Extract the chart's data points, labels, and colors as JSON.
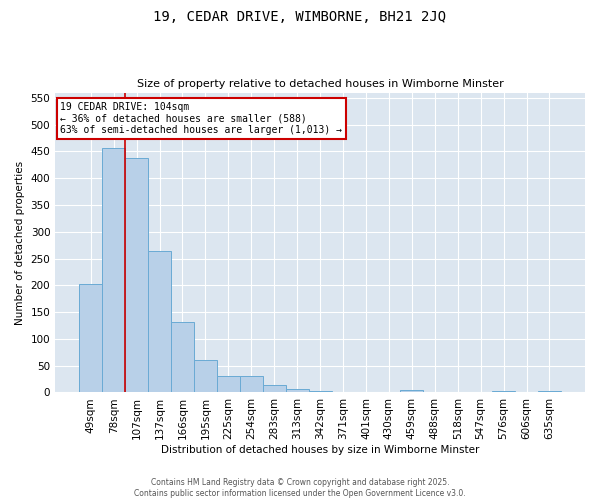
{
  "title": "19, CEDAR DRIVE, WIMBORNE, BH21 2JQ",
  "subtitle": "Size of property relative to detached houses in Wimborne Minster",
  "xlabel": "Distribution of detached houses by size in Wimborne Minster",
  "ylabel": "Number of detached properties",
  "footer_line1": "Contains HM Land Registry data © Crown copyright and database right 2025.",
  "footer_line2": "Contains public sector information licensed under the Open Government Licence v3.0.",
  "categories": [
    "49sqm",
    "78sqm",
    "107sqm",
    "137sqm",
    "166sqm",
    "195sqm",
    "225sqm",
    "254sqm",
    "283sqm",
    "313sqm",
    "342sqm",
    "371sqm",
    "401sqm",
    "430sqm",
    "459sqm",
    "488sqm",
    "518sqm",
    "547sqm",
    "576sqm",
    "606sqm",
    "635sqm"
  ],
  "values": [
    202,
    457,
    438,
    265,
    132,
    61,
    30,
    30,
    13,
    6,
    3,
    1,
    1,
    1,
    5,
    0,
    1,
    0,
    2,
    0,
    3
  ],
  "bar_color": "#b8d0e8",
  "bar_edge_color": "#6aaad4",
  "plot_bg_color": "#dce6f0",
  "fig_bg_color": "#ffffff",
  "grid_color": "#ffffff",
  "vline_color": "#cc0000",
  "annotation_line1": "19 CEDAR DRIVE: 104sqm",
  "annotation_line2": "← 36% of detached houses are smaller (588)",
  "annotation_line3": "63% of semi-detached houses are larger (1,013) →",
  "annotation_box_color": "#ffffff",
  "annotation_box_edge": "#cc0000",
  "ylim": [
    0,
    560
  ],
  "yticks": [
    0,
    50,
    100,
    150,
    200,
    250,
    300,
    350,
    400,
    450,
    500,
    550
  ],
  "vline_index": 1.5
}
